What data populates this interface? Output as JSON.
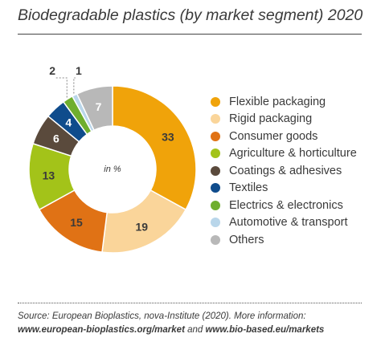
{
  "title": "Biodegradable plastics (by market segment) 2020",
  "chart_data": {
    "type": "pie",
    "title": "Biodegradable plastics (by market segment) 2020",
    "unit_label": "in %",
    "categories": [
      "Flexible packaging",
      "Rigid packaging",
      "Consumer goods",
      "Agriculture & horticulture",
      "Coatings & adhesives",
      "Textiles",
      "Electrics & electronics",
      "Automotive & transport",
      "Others"
    ],
    "values": [
      33,
      19,
      15,
      13,
      6,
      4,
      2,
      1,
      7
    ],
    "value_labels": [
      "33",
      "19",
      "15",
      "13",
      "6",
      "4",
      "2",
      "1",
      "7"
    ],
    "colors": [
      "#f0a30a",
      "#fad59a",
      "#e07215",
      "#a3c319",
      "#5a4a3c",
      "#0f4c8c",
      "#6fae2e",
      "#b9d6ea",
      "#b8b8b8"
    ],
    "label_colors": [
      "#3a3a3a",
      "#3a3a3a",
      "#3a3a3a",
      "#3a3a3a",
      "#ffffff",
      "#ffffff",
      "#3a3a3a",
      "#3a3a3a",
      "#ffffff"
    ],
    "legend_placement": "right"
  },
  "source": {
    "line1": "Source: European Bioplastics, nova-Institute (2020). More information:",
    "link1": "www.european-bioplastics.org/market",
    "and": " and ",
    "link2": "www.bio-based.eu/markets"
  }
}
